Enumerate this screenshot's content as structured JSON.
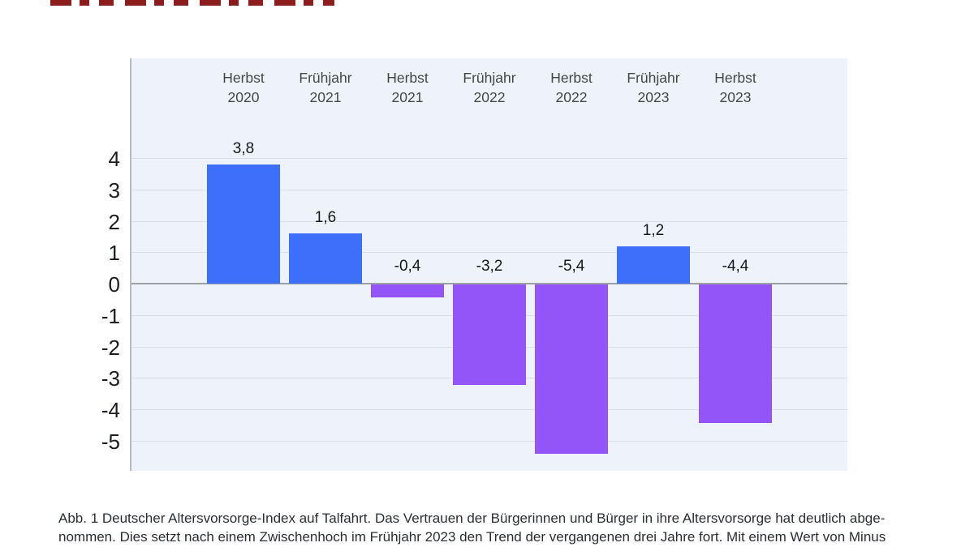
{
  "chart_data": {
    "type": "bar",
    "categories": [
      "Herbst 2020",
      "Frühjahr 2021",
      "Herbst 2021",
      "Frühjahr 2022",
      "Herbst 2022",
      "Frühjahr 2023",
      "Herbst 2023"
    ],
    "values": [
      3.8,
      1.6,
      -0.4,
      -3.2,
      -5.4,
      1.2,
      -4.4
    ],
    "value_labels": [
      "3,8",
      "1,6",
      "-0,4",
      "-3,2",
      "-5,4",
      "1,2",
      "-4,4"
    ],
    "yticks": [
      4,
      3,
      2,
      1,
      0,
      -1,
      -2,
      -3,
      -4,
      -5
    ],
    "ylim": [
      -6,
      7.2
    ],
    "title": "",
    "xlabel": "",
    "ylabel": "",
    "grid": true,
    "legend_position": "none",
    "positive_color": "#3d6ffa",
    "negative_color": "#9355f8",
    "plot_background": "#edf2fb",
    "grid_color": "#d9dee8",
    "zero_line_color": "#9ca1a8",
    "top_fragment_color": "#8c1d1d"
  },
  "caption": {
    "line1": "Abb. 1 Deutscher Altersvorsorge-Index auf Talfahrt. Das Vertrauen der Bürgerinnen und Bürger in ihre Altersvorsorge hat deutlich abge-",
    "line2": "nommen. Dies setzt nach einem Zwischenhoch im Frühjahr 2023 den Trend der vergangenen drei Jahre fort. Mit einem Wert von Minus"
  }
}
